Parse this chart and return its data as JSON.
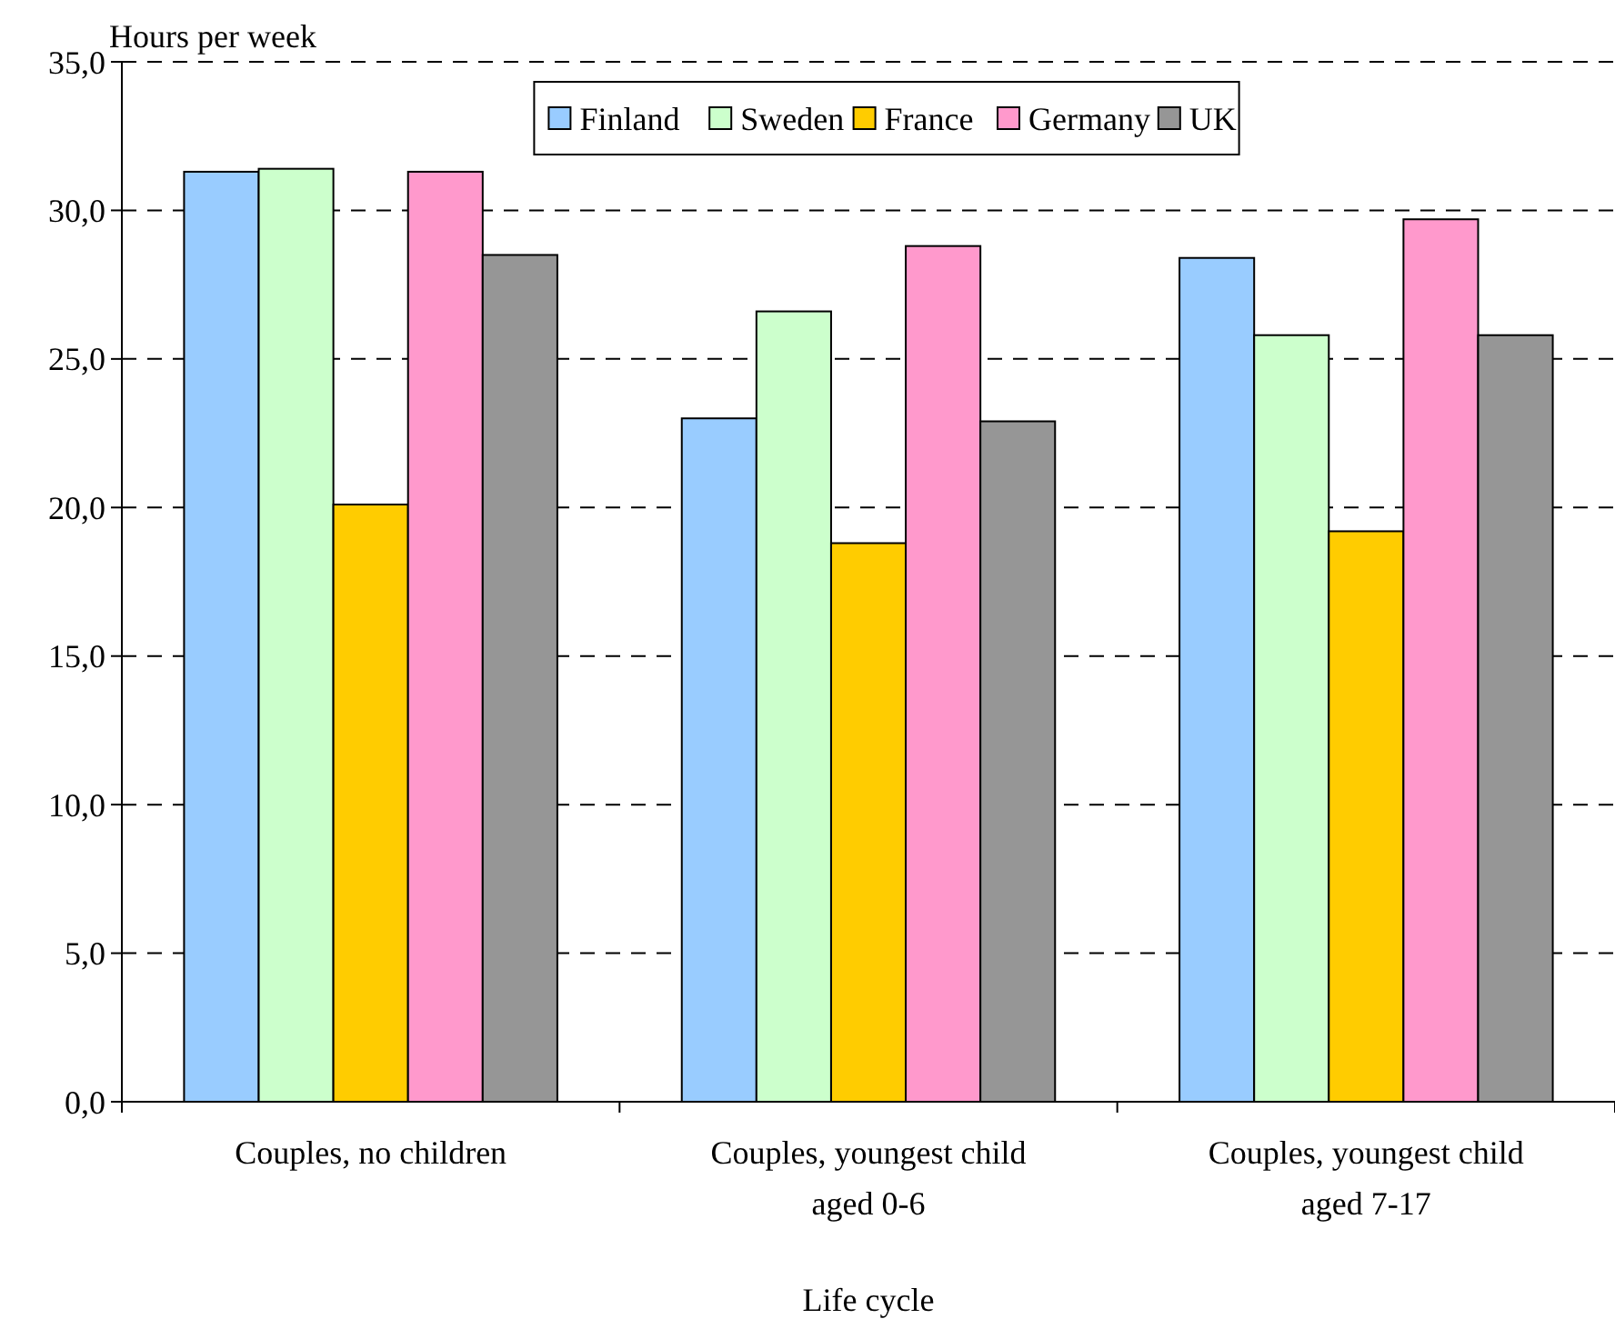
{
  "chart_data": {
    "type": "bar",
    "ylabel": "Hours per week",
    "xlabel": "Life cycle",
    "categories": [
      "Couples, no children",
      "Couples, youngest child aged 0-6",
      "Couples, youngest child aged 7-17"
    ],
    "series": [
      {
        "name": "Finland",
        "color": "#99ccff",
        "values": [
          31.3,
          23.0,
          28.4
        ]
      },
      {
        "name": "Sweden",
        "color": "#ccffcc",
        "values": [
          31.4,
          26.6,
          25.8
        ]
      },
      {
        "name": "France",
        "color": "#ffcc00",
        "values": [
          20.1,
          18.8,
          19.2
        ]
      },
      {
        "name": "Germany",
        "color": "#ff99cc",
        "values": [
          31.3,
          28.8,
          29.7
        ]
      },
      {
        "name": "UK",
        "color": "#969696",
        "values": [
          28.5,
          22.9,
          25.8
        ]
      }
    ],
    "ylim": [
      0,
      35
    ],
    "yticks": [
      {
        "value": 0,
        "label": "0,0"
      },
      {
        "value": 5,
        "label": "5,0"
      },
      {
        "value": 10,
        "label": "10,0"
      },
      {
        "value": 15,
        "label": "15,0"
      },
      {
        "value": 20,
        "label": "20,0"
      },
      {
        "value": 25,
        "label": "25,0"
      },
      {
        "value": 30,
        "label": "30,0"
      },
      {
        "value": 35,
        "label": "35,0"
      }
    ],
    "grid": "y",
    "legend": "top"
  }
}
